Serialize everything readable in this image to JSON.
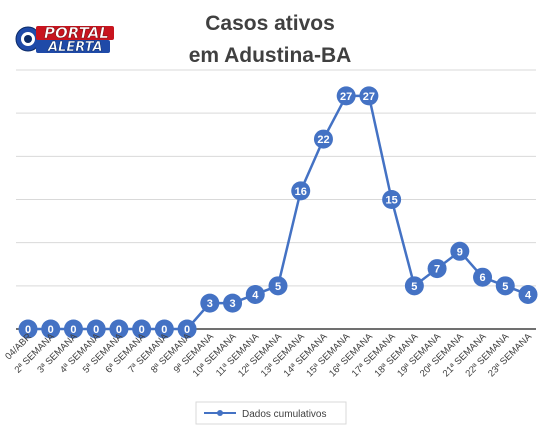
{
  "brand": {
    "logo_top": "PORTAL",
    "logo_bottom": "ALERTA"
  },
  "colors": {
    "series": "#4472C4",
    "grid": "#d9d9d9",
    "axis": "#404040",
    "title": "#404040",
    "logo_red": "#c8141e",
    "logo_blue": "#1f4aa8"
  },
  "chart_data": {
    "type": "line",
    "title_lines": [
      "Casos ativos",
      "em Adustina-BA"
    ],
    "categories": [
      "04/ABR",
      "2ª SEMANA",
      "3ª SEMANA",
      "4ª SEMANA",
      "5ª SEMANA",
      "6ª SEMANA",
      "7ª SEMANA",
      "8ª SEMANA",
      "9ª SEMANA",
      "10ª SEMANA",
      "11ª SEMANA",
      "12ª SEMANA",
      "13ª SEMANA",
      "14ª SEMANA",
      "15ª SEMANA",
      "16ª SEMANA",
      "17ª SEMANA",
      "18ª SEMANA",
      "19ª SEMANA",
      "20ª SEMANA",
      "21ª SEMANA",
      "22ª SEMANA",
      "23ª SEMANA"
    ],
    "series": [
      {
        "name": "Dados cumulativos",
        "values": [
          0,
          0,
          0,
          0,
          0,
          0,
          0,
          0,
          3,
          3,
          4,
          5,
          16,
          22,
          27,
          27,
          15,
          5,
          7,
          9,
          6,
          5,
          4
        ],
        "data_labels": true,
        "marker": "circle"
      }
    ],
    "ylim": [
      0,
      30
    ],
    "y_gridlines": [
      0,
      5,
      10,
      15,
      20,
      25,
      30
    ],
    "y_tick_labels_shown": false,
    "grid": true,
    "legend_position": "bottom",
    "xlabel": "",
    "ylabel": ""
  }
}
